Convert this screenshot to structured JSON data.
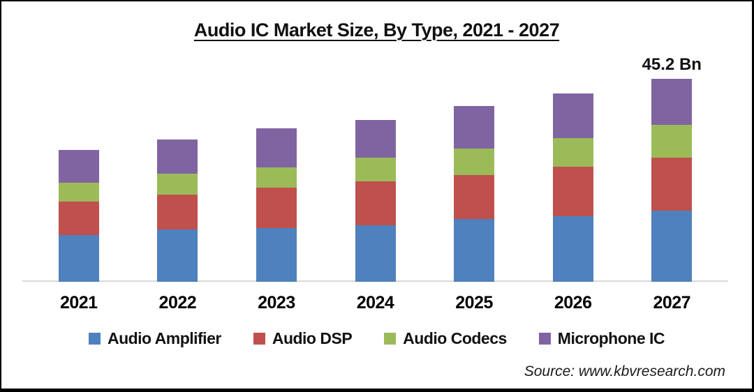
{
  "chart": {
    "title": "Audio IC Market Size, By Type, 2021 - 2027",
    "source": "Source: www.kbvresearch.com"
  },
  "chart_data": {
    "type": "bar",
    "stacked": true,
    "title": "Audio IC Market Size, By Type, 2021 - 2027",
    "unit": "Bn",
    "categories": [
      "2021",
      "2022",
      "2023",
      "2024",
      "2025",
      "2026",
      "2027"
    ],
    "series": [
      {
        "name": "Audio Amplifier",
        "color": "#4E81BD",
        "values": [
          10.4,
          11.6,
          12.0,
          12.6,
          14.0,
          14.6,
          15.9
        ]
      },
      {
        "name": "Audio DSP",
        "color": "#C0504D",
        "values": [
          7.5,
          7.8,
          8.9,
          9.7,
          9.7,
          11.0,
          11.8
        ]
      },
      {
        "name": "Audio Codecs",
        "color": "#9BBB59",
        "values": [
          4.2,
          4.7,
          4.6,
          5.3,
          6.0,
          6.4,
          7.2
        ]
      },
      {
        "name": "Microphone IC",
        "color": "#8064A2",
        "values": [
          7.2,
          7.6,
          8.6,
          8.5,
          9.4,
          10.0,
          10.3
        ]
      }
    ],
    "totals": [
      29.3,
      31.7,
      34.1,
      36.1,
      39.1,
      42.0,
      45.2
    ],
    "annotations": [
      {
        "category": "2027",
        "text": "45.2 Bn"
      }
    ],
    "xlabel": "",
    "ylabel": "",
    "ylim": [
      0,
      50
    ],
    "grid": false,
    "legend_position": "bottom",
    "axis_line_color": "#d9d9d9"
  }
}
